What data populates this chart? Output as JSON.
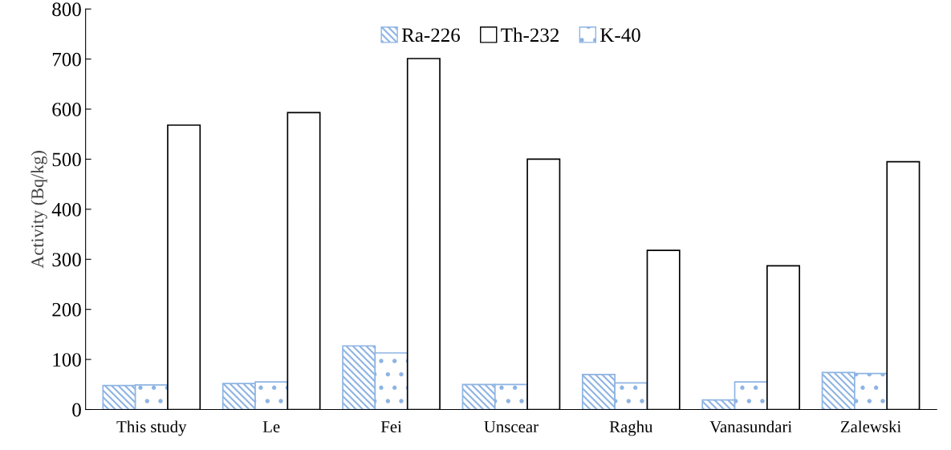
{
  "chart_data": {
    "type": "bar",
    "ylabel": "Activity (Bq/kg)",
    "categories": [
      "This study",
      "Le",
      "Fei",
      "Unscear",
      "Raghu",
      "Vanasundari",
      "Zalewski"
    ],
    "series": [
      {
        "name": "Ra-226",
        "color": "#8eb4e3",
        "values": [
          48,
          52,
          127,
          50,
          70,
          19,
          74
        ]
      },
      {
        "name": "K-40",
        "color": "#8eb4e3",
        "values": [
          49,
          55,
          113,
          50,
          53,
          55,
          72
        ]
      },
      {
        "name": "Th-232",
        "color": "#ffffff",
        "values": [
          568,
          593,
          701,
          500,
          318,
          287,
          495
        ]
      }
    ],
    "ylim": [
      0,
      800
    ],
    "yticks": [
      0,
      100,
      200,
      300,
      400,
      500,
      600,
      700,
      800
    ],
    "grid": false,
    "legend": "top"
  }
}
